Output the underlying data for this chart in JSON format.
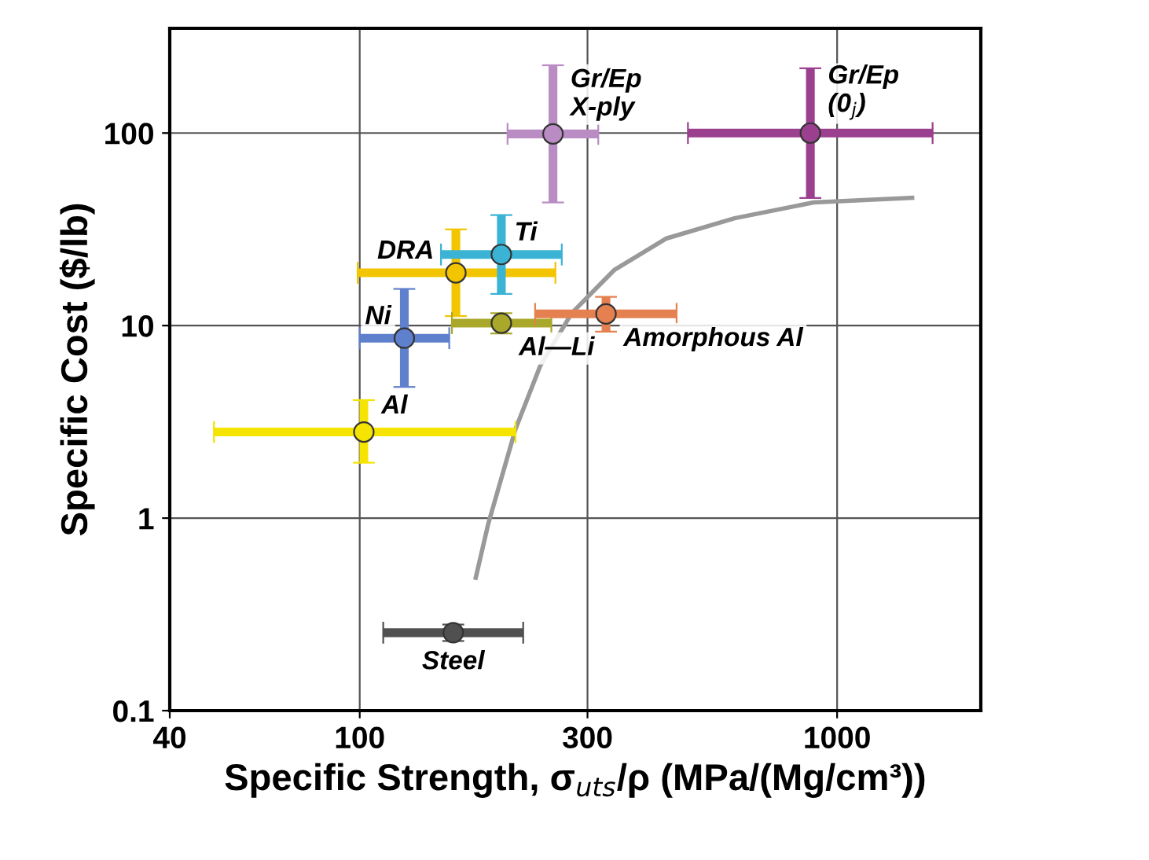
{
  "chart_data": {
    "type": "scatter",
    "xlabel": "Specific Strength, σ$_{uts}$/ρ (MPa/(Mg/cm³))",
    "ylabel": "Specific Cost ($/lb)",
    "log": "xy",
    "xlim": [
      40,
      2000
    ],
    "ylim": [
      0.1,
      350
    ],
    "xticks": [
      40,
      100,
      300,
      1000
    ],
    "yticks": [
      0.1,
      1,
      10,
      100
    ],
    "grid": true,
    "legend": false,
    "marker": "circle",
    "series": [
      {
        "name": "Gr/Ep X-ply",
        "color": "#b98cc4",
        "x": [
          254
        ],
        "values": [
          99
        ],
        "xerrors": [
          [
            204,
            316
          ]
        ],
        "errors": [
          [
            43.6,
            225
          ]
        ]
      },
      {
        "name": "Gr/Ep (0$_{j}$)",
        "color": "#9b3f8f",
        "x": [
          879
        ],
        "values": [
          100
        ],
        "xerrors": [
          [
            487,
            1585
          ]
        ],
        "errors": [
          [
            46,
            217
          ]
        ]
      },
      {
        "name": "DRA",
        "color": "#f2c500",
        "x": [
          159
        ],
        "values": [
          18.8
        ],
        "xerrors": [
          [
            99,
            257
          ]
        ],
        "errors": [
          [
            11.2,
            31.6
          ]
        ]
      },
      {
        "name": "Ti",
        "color": "#3bb3d4",
        "x": [
          198
        ],
        "values": [
          23.4
        ],
        "xerrors": [
          [
            148,
            265
          ]
        ],
        "errors": [
          [
            14.6,
            37.5
          ]
        ]
      },
      {
        "name": "Ni",
        "color": "#5f80cc",
        "x": [
          124
        ],
        "values": [
          8.6
        ],
        "xerrors": [
          [
            100,
            154
          ]
        ],
        "errors": [
          [
            4.8,
            15.5
          ]
        ]
      },
      {
        "name": "Al—Li",
        "color": "#a9a82a",
        "x": [
          198
        ],
        "values": [
          10.3
        ],
        "xerrors": [
          [
            156,
            252
          ]
        ],
        "errors": [
          [
            9.1,
            11.6
          ]
        ]
      },
      {
        "name": "Amorphous Al",
        "color": "#e58050",
        "x": [
          328
        ],
        "values": [
          11.5
        ],
        "xerrors": [
          [
            233,
            461
          ]
        ],
        "errors": [
          [
            9.3,
            14.1
          ]
        ]
      },
      {
        "name": "Al",
        "color": "#f5e400",
        "x": [
          102
        ],
        "values": [
          2.8
        ],
        "xerrors": [
          [
            49.5,
            212
          ]
        ],
        "errors": [
          [
            1.94,
            4.1
          ]
        ]
      },
      {
        "name": "Steel",
        "color": "#505050",
        "x": [
          157
        ],
        "values": [
          0.254
        ],
        "xerrors": [
          [
            112,
            220
          ]
        ],
        "errors": [
          [
            0.23,
            0.28
          ]
        ]
      },
      {
        "type": "line",
        "color": "#999999",
        "marker": "none",
        "x": [
          175,
          186,
          212,
          239,
          278,
          341,
          438,
          610,
          893,
          1436
        ],
        "values": [
          0.49,
          0.94,
          2.9,
          6.2,
          11.6,
          19.4,
          28.3,
          36.1,
          43.6,
          46.1
        ]
      }
    ]
  }
}
